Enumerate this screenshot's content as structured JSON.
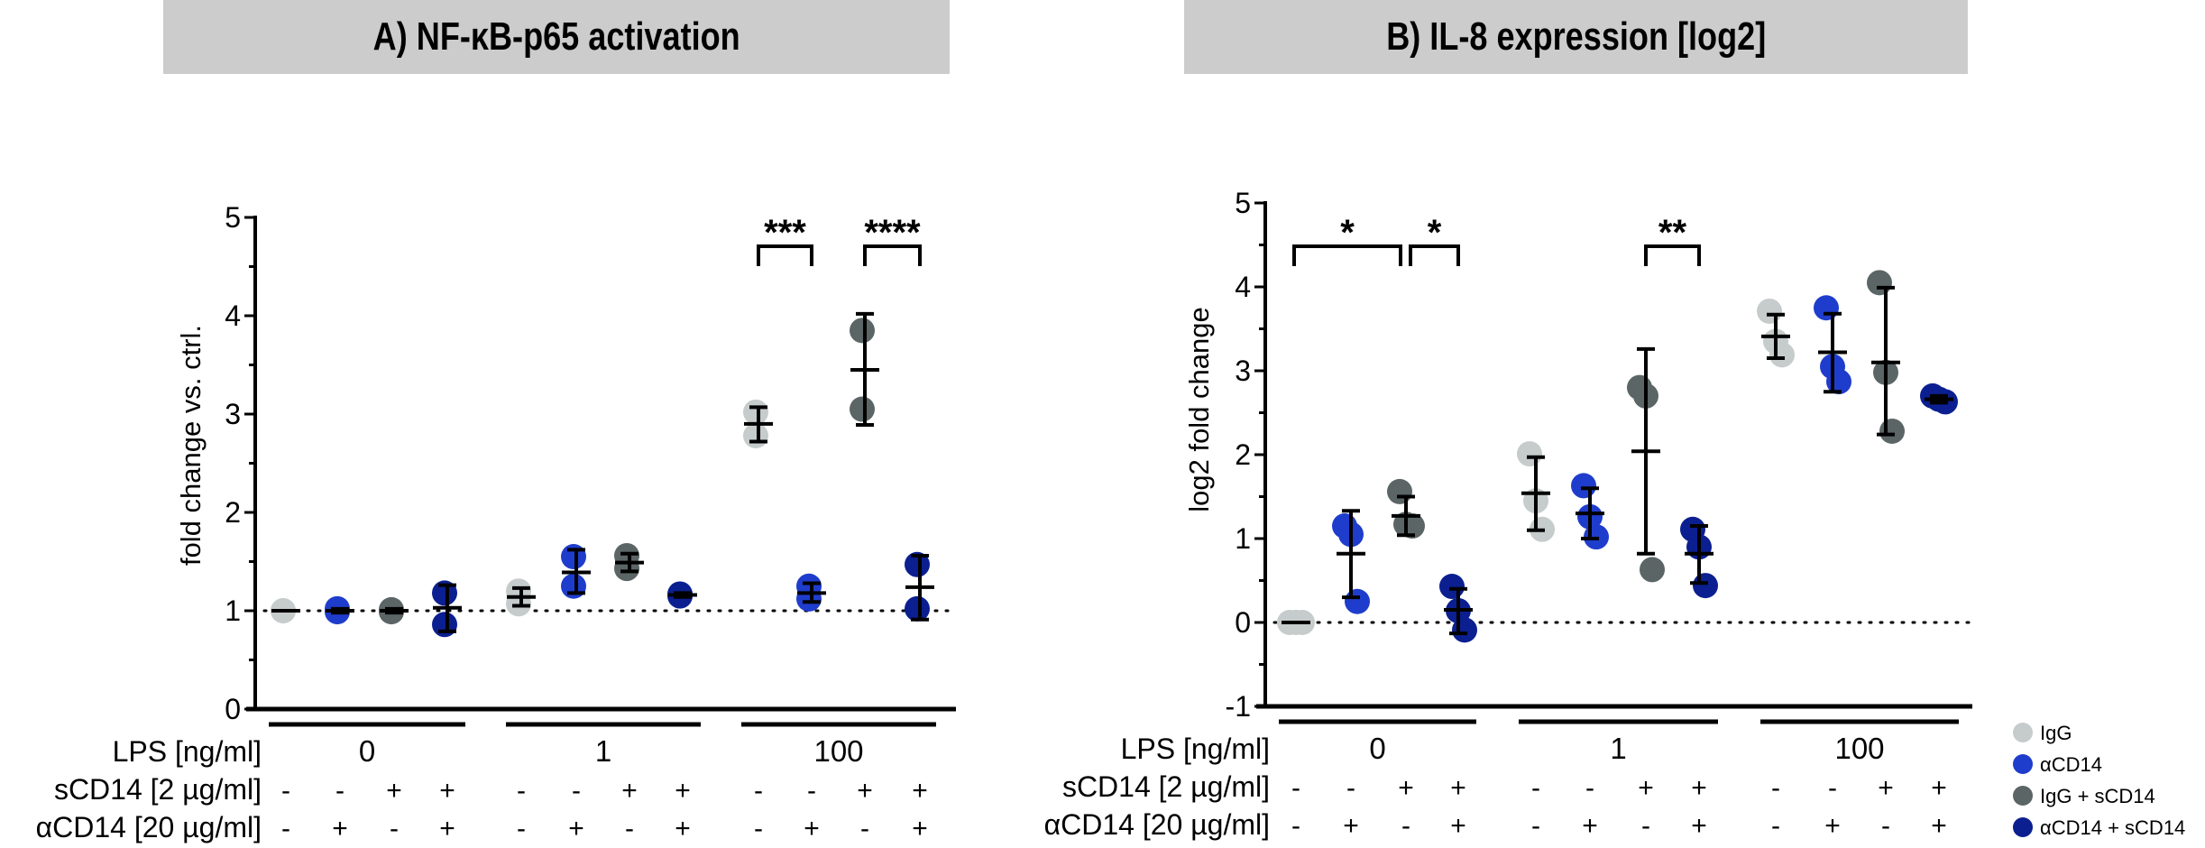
{
  "colors": {
    "IgG": "#c5cccb",
    "aCD14": "#1f3dcc",
    "IgG_sCD14": "#5b6566",
    "aCD14_sCD14": "#0b1f90"
  },
  "legend": [
    {
      "key": "IgG",
      "label": "IgG"
    },
    {
      "key": "aCD14",
      "label": "αCD14"
    },
    {
      "key": "IgG_sCD14",
      "label": "IgG + sCD14"
    },
    {
      "key": "aCD14_sCD14",
      "label": "αCD14 + sCD14"
    }
  ],
  "row_labels": {
    "lps": "LPS [ng/ml]",
    "scd14": "sCD14 [2 µg/ml]",
    "acd14": "αCD14 [20 µg/ml]"
  },
  "lps_groups": [
    "0",
    "1",
    "100"
  ],
  "scd14_signs": [
    "-",
    "-",
    "+",
    "+",
    "-",
    "-",
    "+",
    "+",
    "-",
    "-",
    "+",
    "+"
  ],
  "acd14_signs": [
    "-",
    "+",
    "-",
    "+",
    "-",
    "+",
    "-",
    "+",
    "-",
    "+",
    "-",
    "+"
  ],
  "chart_data": [
    {
      "type": "scatter",
      "title": "A)  NF-κB-p65 activation",
      "xlabel": "",
      "ylabel": "fold change vs. ctrl.",
      "ylim": [
        0,
        5
      ],
      "yticks": [
        0,
        1,
        2,
        3,
        4,
        5
      ],
      "reference_line": 1,
      "categories": [
        "LPS 0 / IgG",
        "LPS 0 / αCD14",
        "LPS 0 / IgG + sCD14",
        "LPS 0 / αCD14 + sCD14",
        "LPS 1 / IgG",
        "LPS 1 / αCD14",
        "LPS 1 / IgG + sCD14",
        "LPS 1 / αCD14 + sCD14",
        "LPS 100 / IgG",
        "LPS 100 / αCD14",
        "LPS 100 / IgG + sCD14",
        "LPS 100 / αCD14 + sCD14"
      ],
      "groups": [
        {
          "series": "IgG",
          "points": [
            1.0,
            1.0
          ],
          "mean": 1.0,
          "err": [
            1.0,
            1.0
          ]
        },
        {
          "series": "aCD14",
          "points": [
            0.99,
            1.02
          ],
          "mean": 1.0,
          "err": [
            0.98,
            1.02
          ]
        },
        {
          "series": "IgG_sCD14",
          "points": [
            0.99,
            1.01
          ],
          "mean": 1.0,
          "err": [
            0.98,
            1.02
          ]
        },
        {
          "series": "aCD14_sCD14",
          "points": [
            1.18,
            0.86
          ],
          "mean": 1.03,
          "err": [
            0.79,
            1.26
          ]
        },
        {
          "series": "IgG",
          "points": [
            1.2,
            1.07
          ],
          "mean": 1.14,
          "err": [
            1.05,
            1.23
          ]
        },
        {
          "series": "aCD14",
          "points": [
            1.55,
            1.25
          ],
          "mean": 1.39,
          "err": [
            1.18,
            1.62
          ]
        },
        {
          "series": "IgG_sCD14",
          "points": [
            1.56,
            1.43
          ],
          "mean": 1.49,
          "err": [
            1.4,
            1.58
          ]
        },
        {
          "series": "aCD14_sCD14",
          "points": [
            1.17,
            1.15
          ],
          "mean": 1.16,
          "err": [
            1.14,
            1.18
          ]
        },
        {
          "series": "IgG",
          "points": [
            3.02,
            2.78
          ],
          "mean": 2.9,
          "err": [
            2.72,
            3.07
          ]
        },
        {
          "series": "aCD14",
          "points": [
            1.25,
            1.12
          ],
          "mean": 1.18,
          "err": [
            1.09,
            1.28
          ]
        },
        {
          "series": "IgG_sCD14",
          "points": [
            3.85,
            3.05
          ],
          "mean": 3.45,
          "err": [
            2.89,
            4.02
          ]
        },
        {
          "series": "aCD14_sCD14",
          "points": [
            1.47,
            1.02
          ],
          "mean": 1.24,
          "err": [
            0.91,
            1.56
          ]
        }
      ],
      "significance": [
        {
          "from": 8,
          "to": 9,
          "label": "***"
        },
        {
          "from": 10,
          "to": 11,
          "label": "****"
        }
      ]
    },
    {
      "type": "scatter",
      "title": "B)  IL-8 expression [log2]",
      "xlabel": "",
      "ylabel": "log2 fold change",
      "ylim": [
        -1,
        5
      ],
      "yticks": [
        -1,
        0,
        1,
        2,
        3,
        4,
        5
      ],
      "reference_line": 0,
      "categories": [
        "LPS 0 / IgG",
        "LPS 0 / αCD14",
        "LPS 0 / IgG + sCD14",
        "LPS 0 / αCD14 + sCD14",
        "LPS 1 / IgG",
        "LPS 1 / αCD14",
        "LPS 1 / IgG + sCD14",
        "LPS 1 / αCD14 + sCD14",
        "LPS 100 / IgG",
        "LPS 100 / αCD14",
        "LPS 100 / IgG + sCD14",
        "LPS 100 / αCD14 + sCD14"
      ],
      "groups": [
        {
          "series": "IgG",
          "points": [
            0.0,
            0.0,
            0.0
          ],
          "mean": 0.0,
          "err": [
            0.0,
            0.0
          ]
        },
        {
          "series": "aCD14",
          "points": [
            1.15,
            1.05,
            0.25
          ],
          "mean": 0.82,
          "err": [
            0.3,
            1.33
          ]
        },
        {
          "series": "IgG_sCD14",
          "points": [
            1.56,
            1.17,
            1.15
          ],
          "mean": 1.27,
          "err": [
            1.04,
            1.5
          ]
        },
        {
          "series": "aCD14_sCD14",
          "points": [
            0.43,
            0.14,
            -0.09
          ],
          "mean": 0.15,
          "err": [
            -0.13,
            0.4
          ]
        },
        {
          "series": "IgG",
          "points": [
            2.01,
            1.45,
            1.11
          ],
          "mean": 1.54,
          "err": [
            1.1,
            1.97
          ]
        },
        {
          "series": "aCD14",
          "points": [
            1.63,
            1.26,
            1.02
          ],
          "mean": 1.3,
          "err": [
            1.0,
            1.6
          ]
        },
        {
          "series": "IgG_sCD14",
          "points": [
            2.8,
            2.7,
            0.63
          ],
          "mean": 2.04,
          "err": [
            0.82,
            3.26
          ]
        },
        {
          "series": "aCD14_sCD14",
          "points": [
            1.11,
            0.9,
            0.44
          ],
          "mean": 0.82,
          "err": [
            0.47,
            1.15
          ]
        },
        {
          "series": "IgG",
          "points": [
            3.71,
            3.35,
            3.19
          ],
          "mean": 3.41,
          "err": [
            3.15,
            3.67
          ]
        },
        {
          "series": "aCD14",
          "points": [
            3.75,
            3.05,
            2.87
          ],
          "mean": 3.22,
          "err": [
            2.75,
            3.68
          ]
        },
        {
          "series": "IgG_sCD14",
          "points": [
            4.05,
            2.98,
            2.28
          ],
          "mean": 3.1,
          "err": [
            2.24,
            3.99
          ]
        },
        {
          "series": "aCD14_sCD14",
          "points": [
            2.7,
            2.66,
            2.63
          ],
          "mean": 2.66,
          "err": [
            2.62,
            2.7
          ]
        }
      ],
      "significance": [
        {
          "from": 0,
          "to": 2,
          "label": "*"
        },
        {
          "from": 2,
          "to": 3,
          "label": "*"
        },
        {
          "from": 6,
          "to": 7,
          "label": "**"
        }
      ]
    }
  ]
}
